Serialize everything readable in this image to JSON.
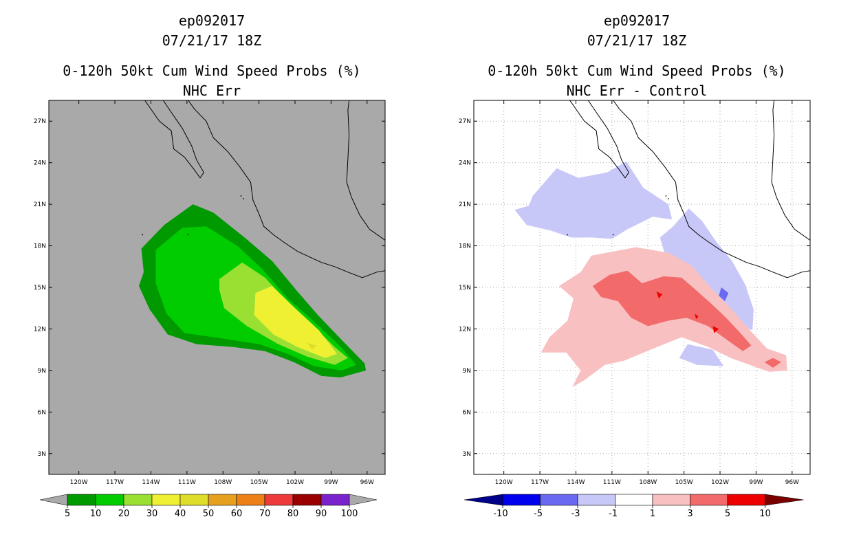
{
  "panels": [
    {
      "id": "left",
      "title_lines": [
        "ep092017",
        "07/21/17 18Z",
        "0-120h 50kt Cum Wind Speed Probs (%)",
        "NHC Err"
      ],
      "background": "#a9a9a9",
      "gridlines": false
    },
    {
      "id": "right",
      "title_lines": [
        "ep092017",
        "07/21/17 18Z",
        "0-120h 50kt Cum Wind Speed Probs (%)",
        "NHC Err - Control"
      ],
      "background": "#ffffff",
      "gridlines": true
    }
  ],
  "chart_data": [
    {
      "type": "heatmap",
      "title": "0-120h 50kt Cum Wind Speed Probs (%) NHC Err",
      "storm": "ep092017",
      "time": "07/21/17 18Z",
      "xlabel": "",
      "ylabel": "",
      "xlim": [
        -122.5,
        -94.5
      ],
      "ylim": [
        1.5,
        28.5
      ],
      "x_ticks": [
        -120,
        -117,
        -114,
        -111,
        -108,
        -105,
        -102,
        -99,
        -96
      ],
      "x_tick_labels": [
        "120W",
        "117W",
        "114W",
        "111W",
        "108W",
        "105W",
        "102W",
        "99W",
        "96W"
      ],
      "y_ticks": [
        3,
        6,
        9,
        12,
        15,
        18,
        21,
        24,
        27
      ],
      "y_tick_labels": [
        "3N",
        "6N",
        "9N",
        "12N",
        "15N",
        "18N",
        "21N",
        "24N",
        "27N"
      ],
      "colorbar": {
        "labels": [
          "5",
          "10",
          "20",
          "30",
          "40",
          "50",
          "60",
          "70",
          "80",
          "90",
          "100"
        ],
        "colors": [
          "#009900",
          "#00cc00",
          "#99e033",
          "#f0f033",
          "#dddd2a",
          "#e6a020",
          "#ee8018",
          "#ee3a3a",
          "#990000",
          "#7a22cc"
        ],
        "under_color": "#a9a9a9",
        "over_color": "#a9a9a9"
      },
      "contours": [
        {
          "level": 5,
          "color": "#009900",
          "points": [
            [
              -114.8,
              17.8
            ],
            [
              -112.9,
              19.5
            ],
            [
              -110.5,
              21.0
            ],
            [
              -108.8,
              20.4
            ],
            [
              -106.2,
              18.6
            ],
            [
              -103.9,
              16.9
            ],
            [
              -101.9,
              14.8
            ],
            [
              -100.1,
              13.0
            ],
            [
              -98.1,
              11.2
            ],
            [
              -96.2,
              9.5
            ],
            [
              -96.1,
              9.0
            ],
            [
              -98.2,
              8.5
            ],
            [
              -99.8,
              8.6
            ],
            [
              -102.1,
              9.6
            ],
            [
              -104.5,
              10.4
            ],
            [
              -107.2,
              10.7
            ],
            [
              -110.2,
              10.9
            ],
            [
              -112.6,
              11.6
            ],
            [
              -114.1,
              13.4
            ],
            [
              -115.0,
              15.1
            ],
            [
              -114.6,
              16.1
            ]
          ]
        },
        {
          "level": 10,
          "color": "#00cc00",
          "points": [
            [
              -113.6,
              17.7
            ],
            [
              -111.4,
              19.3
            ],
            [
              -109.4,
              19.4
            ],
            [
              -106.8,
              18.0
            ],
            [
              -104.7,
              16.3
            ],
            [
              -102.6,
              14.2
            ],
            [
              -100.5,
              12.6
            ],
            [
              -98.3,
              10.8
            ],
            [
              -96.9,
              9.4
            ],
            [
              -98.1,
              9.0
            ],
            [
              -100.4,
              9.3
            ],
            [
              -102.6,
              10.2
            ],
            [
              -105.0,
              10.9
            ],
            [
              -108.0,
              11.3
            ],
            [
              -111.2,
              11.7
            ],
            [
              -112.7,
              13.1
            ],
            [
              -113.6,
              15.3
            ]
          ]
        },
        {
          "level": 20,
          "color": "#99e033",
          "points": [
            [
              -108.3,
              15.6
            ],
            [
              -106.4,
              16.8
            ],
            [
              -104.5,
              15.7
            ],
            [
              -102.8,
              14.1
            ],
            [
              -100.7,
              12.4
            ],
            [
              -98.7,
              10.7
            ],
            [
              -97.6,
              9.9
            ],
            [
              -98.7,
              9.4
            ],
            [
              -101.0,
              10.0
            ],
            [
              -103.4,
              10.9
            ],
            [
              -106.0,
              12.2
            ],
            [
              -107.9,
              13.5
            ],
            [
              -108.3,
              14.8
            ]
          ]
        },
        {
          "level": 30,
          "color": "#f0f033",
          "points": [
            [
              -105.3,
              14.6
            ],
            [
              -103.9,
              15.1
            ],
            [
              -102.0,
              13.5
            ],
            [
              -100.0,
              11.9
            ],
            [
              -98.5,
              10.2
            ],
            [
              -99.5,
              9.9
            ],
            [
              -101.8,
              10.7
            ],
            [
              -103.8,
              11.6
            ],
            [
              -105.4,
              13.0
            ]
          ]
        },
        {
          "level": 40,
          "color": "#dddd2a",
          "points": [
            [
              -101.0,
              11.0
            ],
            [
              -100.2,
              10.8
            ],
            [
              -100.6,
              10.5
            ]
          ]
        }
      ]
    },
    {
      "type": "heatmap",
      "title": "0-120h 50kt Cum Wind Speed Probs (%) NHC Err - Control",
      "storm": "ep092017",
      "time": "07/21/17 18Z",
      "xlabel": "",
      "ylabel": "",
      "xlim": [
        -122.5,
        -94.5
      ],
      "ylim": [
        1.5,
        28.5
      ],
      "x_ticks": [
        -120,
        -117,
        -114,
        -111,
        -108,
        -105,
        -102,
        -99,
        -96
      ],
      "x_tick_labels": [
        "120W",
        "117W",
        "114W",
        "111W",
        "108W",
        "105W",
        "102W",
        "99W",
        "96W"
      ],
      "y_ticks": [
        3,
        6,
        9,
        12,
        15,
        18,
        21,
        24,
        27
      ],
      "y_tick_labels": [
        "3N",
        "6N",
        "9N",
        "12N",
        "15N",
        "18N",
        "21N",
        "24N",
        "27N"
      ],
      "colorbar": {
        "labels": [
          "-10",
          "-5",
          "-3",
          "-1",
          "1",
          "3",
          "5",
          "10"
        ],
        "colors": [
          "#0000ee",
          "#6a6af0",
          "#c8c8f8",
          "#ffffff",
          "#f8c0c0",
          "#f26a6a",
          "#ee0000"
        ],
        "under_color": "#00008b",
        "over_color": "#7a0000"
      },
      "contours": [
        {
          "level": -1,
          "color": "#c8c8f8",
          "points": [
            [
              -117.6,
              21.6
            ],
            [
              -115.6,
              23.6
            ],
            [
              -113.8,
              22.9
            ],
            [
              -111.4,
              23.3
            ],
            [
              -109.8,
              24.1
            ],
            [
              -108.4,
              22.2
            ],
            [
              -106.3,
              21.0
            ],
            [
              -106.0,
              19.9
            ],
            [
              -107.6,
              20.1
            ],
            [
              -109.7,
              19.2
            ],
            [
              -111.0,
              18.5
            ],
            [
              -112.6,
              18.6
            ],
            [
              -114.4,
              18.6
            ],
            [
              -116.1,
              19.1
            ],
            [
              -118.1,
              19.5
            ],
            [
              -119.1,
              20.6
            ],
            [
              -117.9,
              20.9
            ]
          ]
        },
        {
          "level": -1,
          "color": "#c8c8f8",
          "points": [
            [
              -104.6,
              20.7
            ],
            [
              -103.5,
              19.8
            ],
            [
              -102.4,
              18.4
            ],
            [
              -101.0,
              16.9
            ],
            [
              -99.9,
              15.2
            ],
            [
              -99.2,
              13.4
            ],
            [
              -99.3,
              11.9
            ],
            [
              -100.8,
              12.5
            ],
            [
              -101.8,
              13.6
            ],
            [
              -103.3,
              14.8
            ],
            [
              -105.0,
              16.2
            ],
            [
              -106.6,
              17.4
            ],
            [
              -107.0,
              18.6
            ],
            [
              -105.9,
              19.4
            ]
          ]
        },
        {
          "level": -3,
          "color": "#6a6af0",
          "points": [
            [
              -101.9,
              15.0
            ],
            [
              -101.3,
              14.6
            ],
            [
              -101.6,
              14.0
            ],
            [
              -102.1,
              14.4
            ]
          ]
        },
        {
          "level": -1,
          "color": "#c8c8f8",
          "points": [
            [
              -104.7,
              10.9
            ],
            [
              -102.6,
              10.5
            ],
            [
              -101.7,
              9.3
            ],
            [
              -103.9,
              9.4
            ],
            [
              -105.4,
              9.9
            ]
          ]
        },
        {
          "level": 1,
          "color": "#f8c0c0",
          "points": [
            [
              -112.7,
              17.3
            ],
            [
              -109.0,
              17.9
            ],
            [
              -106.3,
              17.5
            ],
            [
              -104.4,
              16.6
            ],
            [
              -102.8,
              15.0
            ],
            [
              -101.0,
              13.4
            ],
            [
              -99.5,
              11.9
            ],
            [
              -98.1,
              10.6
            ],
            [
              -96.5,
              10.1
            ],
            [
              -96.4,
              9.0
            ],
            [
              -97.9,
              8.9
            ],
            [
              -99.2,
              9.3
            ],
            [
              -101.1,
              9.9
            ],
            [
              -103.0,
              10.7
            ],
            [
              -105.2,
              11.4
            ],
            [
              -107.8,
              10.5
            ],
            [
              -110.0,
              9.7
            ],
            [
              -111.6,
              9.4
            ],
            [
              -113.3,
              8.3
            ],
            [
              -114.3,
              7.8
            ],
            [
              -113.6,
              9.0
            ],
            [
              -114.8,
              10.3
            ],
            [
              -116.9,
              10.3
            ],
            [
              -116.2,
              11.4
            ],
            [
              -114.7,
              12.6
            ],
            [
              -114.2,
              14.2
            ],
            [
              -115.4,
              15.1
            ],
            [
              -113.6,
              16.1
            ]
          ]
        },
        {
          "level": 3,
          "color": "#f26a6a",
          "points": [
            [
              -112.6,
              15.1
            ],
            [
              -111.2,
              15.9
            ],
            [
              -109.7,
              16.2
            ],
            [
              -108.5,
              15.3
            ],
            [
              -106.7,
              15.8
            ],
            [
              -105.2,
              15.7
            ],
            [
              -104.0,
              14.8
            ],
            [
              -102.7,
              13.8
            ],
            [
              -101.5,
              12.8
            ],
            [
              -100.3,
              11.7
            ],
            [
              -99.4,
              10.8
            ],
            [
              -100.1,
              10.4
            ],
            [
              -101.4,
              11.2
            ],
            [
              -103.0,
              12.2
            ],
            [
              -104.8,
              12.8
            ],
            [
              -106.3,
              12.6
            ],
            [
              -108.0,
              12.2
            ],
            [
              -109.4,
              12.8
            ],
            [
              -110.5,
              14.0
            ],
            [
              -111.9,
              14.3
            ]
          ]
        },
        {
          "level": 3,
          "color": "#f26a6a",
          "points": [
            [
              -97.6,
              9.9
            ],
            [
              -96.9,
              9.6
            ],
            [
              -97.6,
              9.2
            ],
            [
              -98.3,
              9.6
            ]
          ]
        },
        {
          "level": 5,
          "color": "#ee0000",
          "points": [
            [
              -107.3,
              14.7
            ],
            [
              -106.8,
              14.5
            ],
            [
              -107.1,
              14.2
            ]
          ]
        },
        {
          "level": 5,
          "color": "#ee0000",
          "points": [
            [
              -102.6,
              12.2
            ],
            [
              -102.1,
              12.0
            ],
            [
              -102.5,
              11.7
            ]
          ]
        },
        {
          "level": 5,
          "color": "#ee0000",
          "points": [
            [
              -104.1,
              13.1
            ],
            [
              -103.8,
              12.9
            ],
            [
              -104.0,
              12.7
            ]
          ]
        }
      ]
    }
  ]
}
